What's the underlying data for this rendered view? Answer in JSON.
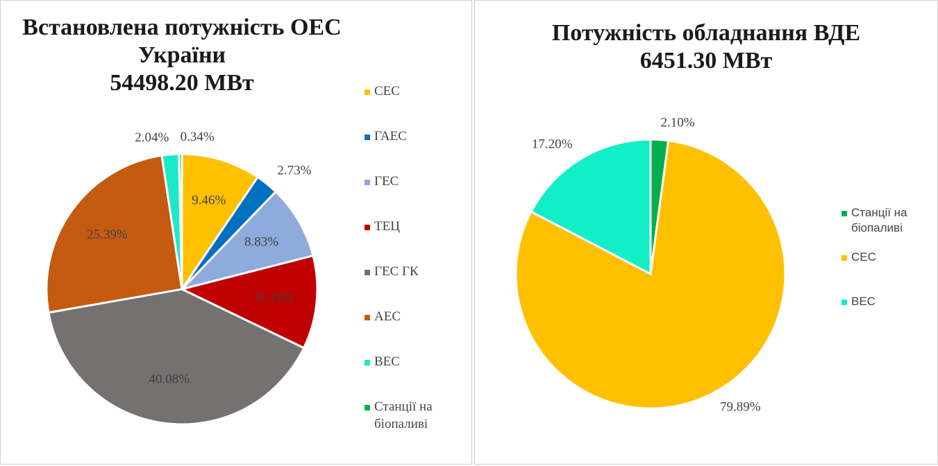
{
  "charts": [
    {
      "chart_data": {
        "type": "pie",
        "title": [
          "Встановлена потужність ОЕС",
          "України"
        ],
        "subtitle": "54498.20 МВт",
        "categories": [
          "СЕС",
          "ГАЕС",
          "ГЕС",
          "ТЕЦ",
          "ГЕС ГК",
          "АЕС",
          "ВЕС",
          "Станції на біопаливі"
        ],
        "values": [
          9.46,
          2.73,
          8.83,
          11.14,
          40.08,
          25.39,
          2.04,
          0.34
        ],
        "value_labels": [
          "9.46%",
          "2.73%",
          "8.83%",
          "11.14%",
          "40.08%",
          "25.39%",
          "2.04%",
          "0.34%"
        ],
        "colors": [
          "#ffc000",
          "#0070c0",
          "#8faadc",
          "#c00000",
          "#767171",
          "#c55a11",
          "#1de9c8",
          "#00b050"
        ],
        "legend": "right"
      }
    },
    {
      "chart_data": {
        "type": "pie",
        "title": [
          "Потужність обладнання ВДЕ"
        ],
        "subtitle": "6451.30 МВт",
        "categories": [
          "Станції на біопаливі",
          "СЕС",
          "ВЕС"
        ],
        "values": [
          2.1,
          79.89,
          17.2
        ],
        "value_labels": [
          "2.10%",
          "79.89%",
          "17.20%"
        ],
        "colors": [
          "#00b050",
          "#ffc000",
          "#12eec8"
        ],
        "legend": "right"
      }
    }
  ]
}
